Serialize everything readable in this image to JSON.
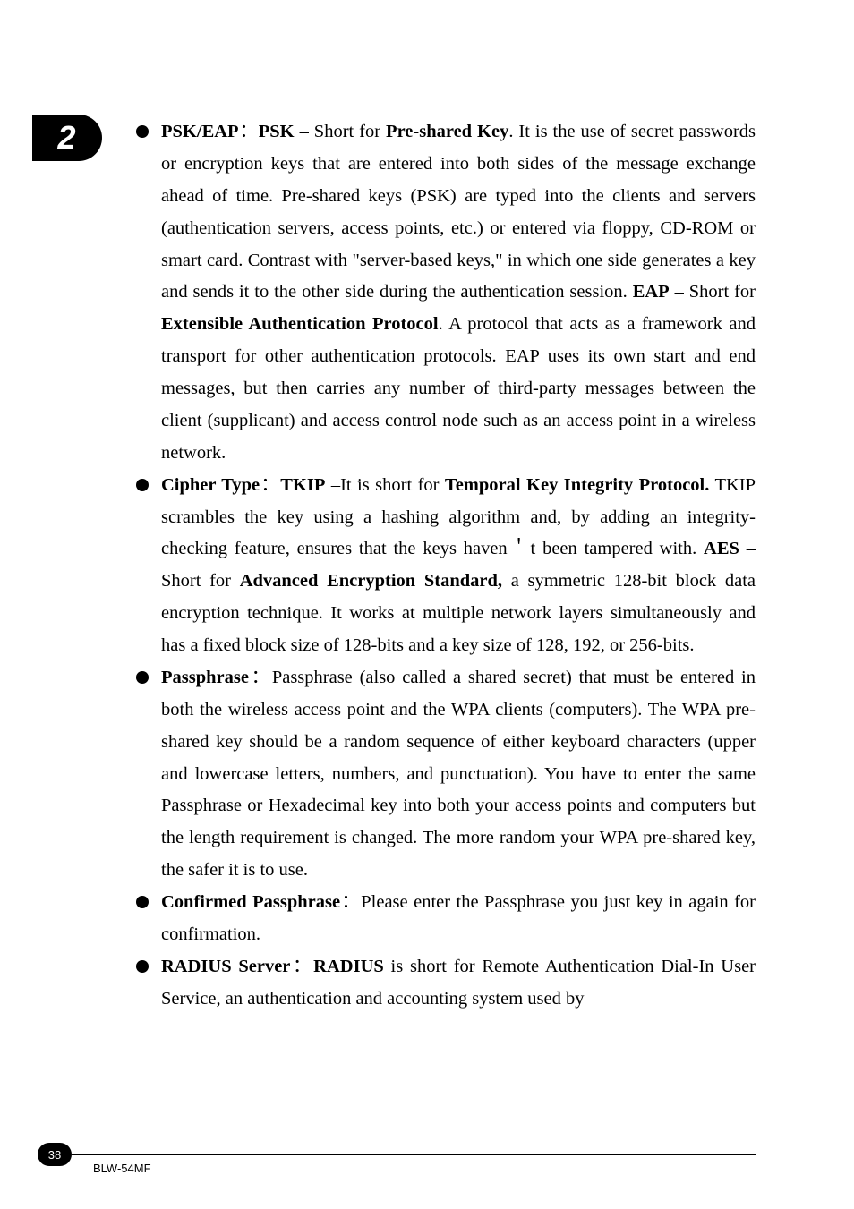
{
  "chapter": {
    "number": "2"
  },
  "footer": {
    "page_number": "38",
    "model": "BLW-54MF"
  },
  "items": [
    {
      "label_bold": "PSK/EAP",
      "sep": "：",
      "lead_bold": "PSK",
      "text1": " – Short for ",
      "term1": "Pre-shared Key",
      "text2": ". It is the use of secret passwords or encryption keys that are entered into both sides of the message exchange ahead of time. Pre-shared keys (PSK) are typed into the clients and servers (authentication servers, access points, etc.) or entered via floppy, CD-ROM or smart card. Contrast with \"server-based keys,\" in which one side generates a key and sends it to the other side during the authentication session. ",
      "term2": "EAP",
      "text3": " – Short for ",
      "term3": "Extensible Authentication Protocol",
      "text4": ". A protocol that acts as a framework and transport for other authentication protocols. EAP uses its own start and end messages, but then carries any number of third-party messages between the client (supplicant) and access control node such as an access point in a wireless network."
    },
    {
      "label_bold": "Cipher Type",
      "sep": "：",
      "lead_bold": "TKIP",
      "text1": " –It is short for ",
      "term1": "Temporal Key Integrity Protocol.",
      "text2": " TKIP scrambles the key using a hashing algorithm and, by adding an integrity-checking feature, ensures that the keys haven＇t been tampered with. ",
      "term2": "AES",
      "text3": " – Short for ",
      "term3": "Advanced Encryption Standard,",
      "text4": " a symmetric 128-bit block data encryption technique. It works at multiple network layers simultaneously and has a fixed block size of 128-bits and a key size of 128, 192, or 256-bits."
    },
    {
      "label_bold": "Passphrase",
      "sep": "：",
      "text1": "Passphrase (also called a shared secret) that must be entered in both the wireless access point and the WPA clients (computers). The WPA pre-shared key should be a random sequence of either keyboard characters (upper and lowercase letters, numbers, and punctuation). You have to enter the same Passphrase or Hexadecimal key into both your access points and computers but the length requirement is changed. The more random your WPA pre-shared key, the safer it is to use."
    },
    {
      "label_bold": "Confirmed Passphrase",
      "sep": "：",
      "text1": "Please enter the Passphrase you just key in again for confirmation."
    },
    {
      "label_bold": "RADIUS Server",
      "sep": "：",
      "lead_bold": "RADIUS",
      "text1": " is short for Remote Authentication Dial-In User Service, an authentication and accounting system used by"
    }
  ]
}
